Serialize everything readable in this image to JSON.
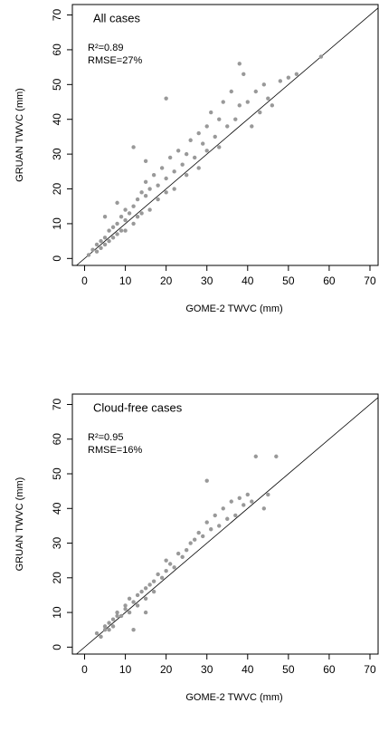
{
  "chart_data": [
    {
      "type": "scatter",
      "label": "All cases",
      "annotations": [
        "R²=0.89",
        "RMSE=27%"
      ],
      "x_label": "GOME-2 TWVC (mm)",
      "y_label": "GRUAN TWVC (mm)",
      "color": "#999999",
      "xlim": [
        -3,
        72
      ],
      "ylim": [
        -2,
        73
      ],
      "xticks": [
        0,
        10,
        20,
        30,
        40,
        50,
        60,
        70
      ],
      "yticks": [
        0,
        10,
        20,
        30,
        40,
        50,
        60,
        70
      ],
      "x": [
        1,
        2,
        3,
        3,
        4,
        4,
        5,
        5,
        6,
        6,
        7,
        7,
        8,
        8,
        9,
        9,
        10,
        10,
        10,
        11,
        12,
        12,
        13,
        13,
        14,
        14,
        15,
        15,
        16,
        16,
        17,
        18,
        18,
        19,
        20,
        20,
        21,
        22,
        22,
        23,
        24,
        25,
        25,
        26,
        27,
        28,
        28,
        29,
        30,
        30,
        31,
        32,
        33,
        33,
        34,
        35,
        36,
        37,
        38,
        39,
        40,
        41,
        42,
        43,
        44,
        45,
        46,
        48,
        50,
        52,
        58,
        20,
        12,
        15,
        8,
        5,
        38
      ],
      "values": [
        1,
        2.5,
        2,
        4,
        5,
        3,
        6,
        4,
        8,
        5,
        9,
        6,
        10,
        7,
        12,
        8,
        11,
        14,
        8,
        13,
        15,
        10,
        17,
        12,
        19,
        13,
        18,
        22,
        20,
        14,
        24,
        21,
        17,
        26,
        23,
        19,
        29,
        25,
        20,
        31,
        27,
        30,
        24,
        34,
        29,
        36,
        26,
        33,
        38,
        31,
        42,
        35,
        40,
        32,
        45,
        38,
        48,
        40,
        44,
        53,
        45,
        38,
        48,
        42,
        50,
        46,
        44,
        51,
        52,
        53,
        58,
        46,
        32,
        28,
        16,
        12,
        56
      ]
    },
    {
      "type": "scatter",
      "label": "Cloud-free cases",
      "annotations": [
        "R²=0.95",
        "RMSE=16%"
      ],
      "x_label": "GOME-2 TWVC (mm)",
      "y_label": "GRUAN TWVC (mm)",
      "color": "#999999",
      "xlim": [
        -3,
        72
      ],
      "ylim": [
        -2,
        73
      ],
      "xticks": [
        0,
        10,
        20,
        30,
        40,
        50,
        60,
        70
      ],
      "yticks": [
        0,
        10,
        20,
        30,
        40,
        50,
        60,
        70
      ],
      "x": [
        3,
        4,
        5,
        5,
        6,
        6,
        7,
        7,
        8,
        8,
        9,
        10,
        10,
        11,
        11,
        12,
        13,
        13,
        14,
        15,
        15,
        16,
        17,
        17,
        18,
        19,
        20,
        20,
        21,
        22,
        23,
        24,
        25,
        26,
        27,
        28,
        29,
        30,
        31,
        32,
        33,
        34,
        35,
        36,
        37,
        38,
        39,
        40,
        41,
        42,
        44,
        45,
        47,
        30,
        12,
        15
      ],
      "values": [
        4,
        3,
        6,
        5,
        7,
        5,
        8,
        6,
        9,
        10,
        9,
        12,
        11,
        10,
        14,
        13,
        15,
        12,
        16,
        17,
        14,
        18,
        19,
        16,
        21,
        20,
        22,
        25,
        24,
        23,
        27,
        26,
        28,
        30,
        31,
        33,
        32,
        36,
        34,
        38,
        35,
        40,
        37,
        42,
        38,
        43,
        41,
        44,
        42,
        55,
        40,
        44,
        55,
        48,
        5,
        10
      ]
    }
  ]
}
